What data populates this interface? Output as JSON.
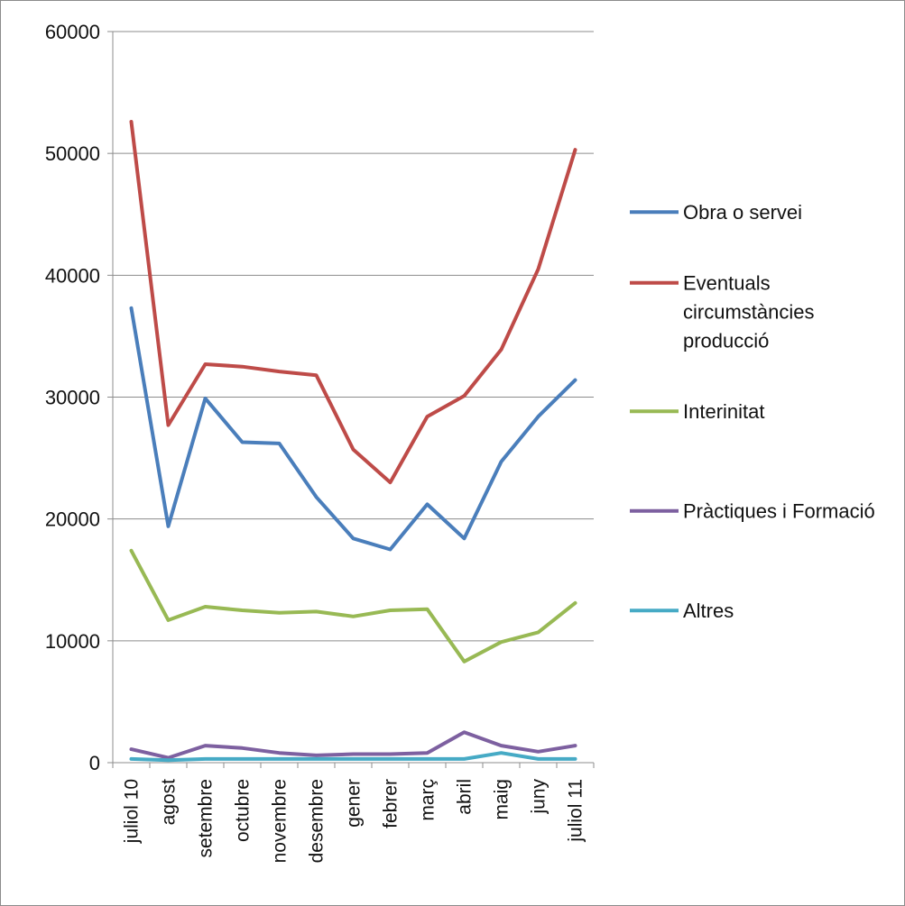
{
  "chart_data": {
    "type": "line",
    "title": "",
    "xlabel": "",
    "ylabel": "",
    "ylim": [
      0,
      60000
    ],
    "yticks": [
      "0",
      "10000",
      "20000",
      "30000",
      "40000",
      "50000",
      "60000"
    ],
    "y_tick_values": [
      0,
      10000,
      20000,
      30000,
      40000,
      50000,
      60000
    ],
    "categories": [
      "juliol 10",
      "agost",
      "setembre",
      "octubre",
      "novembre",
      "desembre",
      "gener",
      "febrer",
      "març",
      "abril",
      "maig",
      "juny",
      "juliol 11"
    ],
    "grid": "horizontal",
    "legend_position": "right",
    "series": [
      {
        "name": "Obra o servei",
        "legend_lines": [
          "Obra o servei"
        ],
        "color": "#4a7ebb",
        "values": [
          37300,
          19400,
          29900,
          26300,
          26200,
          21800,
          18400,
          17500,
          21200,
          18400,
          24700,
          28400,
          31400
        ]
      },
      {
        "name": "Eventuals circumstàncies producció",
        "legend_lines": [
          "Eventuals",
          "circumstàncies",
          "producció"
        ],
        "color": "#be4b48",
        "values": [
          52600,
          27700,
          32700,
          32500,
          32100,
          31800,
          25700,
          23000,
          28400,
          30100,
          33900,
          40500,
          50300
        ]
      },
      {
        "name": "Interinitat",
        "legend_lines": [
          "Interinitat"
        ],
        "color": "#98b954",
        "values": [
          17400,
          11700,
          12800,
          12500,
          12300,
          12400,
          12000,
          12500,
          12600,
          8300,
          9900,
          10700,
          13100
        ]
      },
      {
        "name": "Pràctiques i Formació",
        "legend_lines": [
          "Pràctiques i Formació"
        ],
        "color": "#7d60a0",
        "values": [
          1100,
          400,
          1400,
          1200,
          800,
          600,
          700,
          700,
          800,
          2500,
          1400,
          900,
          1400
        ]
      },
      {
        "name": "Altres",
        "legend_lines": [
          "Altres"
        ],
        "color": "#46aac5",
        "values": [
          300,
          200,
          300,
          300,
          300,
          300,
          300,
          300,
          300,
          300,
          800,
          300,
          300
        ]
      }
    ]
  }
}
